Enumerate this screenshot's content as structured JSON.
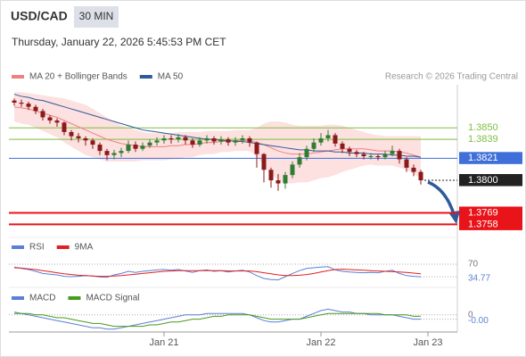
{
  "header": {
    "symbol": "USD/CAD",
    "interval": "30 MIN",
    "datetime": "Thursday, January 22, 2026 5:45:53 PM CET",
    "credit": "Research © 2026 Trading Central"
  },
  "chart_data": [
    {
      "type": "candlestick",
      "categories": [
        null,
        null,
        null,
        null,
        null,
        null,
        null,
        null,
        null,
        null,
        null,
        null,
        null,
        null,
        null,
        null,
        null,
        null,
        null,
        null,
        null,
        "Jan 21",
        null,
        null,
        null,
        null,
        null,
        null,
        null,
        null,
        null,
        null,
        null,
        null,
        null,
        null,
        null,
        null,
        null,
        null,
        null,
        null,
        null,
        "Jan 22",
        null,
        null,
        null,
        null,
        null,
        null,
        null,
        null,
        null,
        null,
        null,
        null,
        null,
        null,
        "Jan 23"
      ],
      "candles": [
        [
          1.3876,
          1.3878,
          1.3871,
          1.3874
        ],
        [
          1.3874,
          1.3877,
          1.387,
          1.3873
        ],
        [
          1.3873,
          1.3875,
          1.3867,
          1.387
        ],
        [
          1.387,
          1.3872,
          1.3863,
          1.3866
        ],
        [
          1.3866,
          1.3868,
          1.3857,
          1.386
        ],
        [
          1.386,
          1.3862,
          1.3854,
          1.3857
        ],
        [
          1.3857,
          1.3859,
          1.3851,
          1.3855
        ],
        [
          1.3855,
          1.3856,
          1.3843,
          1.3846
        ],
        [
          1.3846,
          1.3848,
          1.3838,
          1.3842
        ],
        [
          1.3842,
          1.3845,
          1.3836,
          1.384
        ],
        [
          1.384,
          1.3842,
          1.3833,
          1.3838
        ],
        [
          1.3838,
          1.384,
          1.383,
          1.3834
        ],
        [
          1.3834,
          1.3836,
          1.3824,
          1.3828
        ],
        [
          1.3828,
          1.383,
          1.3819,
          1.3824
        ],
        [
          1.3824,
          1.3829,
          1.382,
          1.3826
        ],
        [
          1.3826,
          1.3831,
          1.3822,
          1.3828
        ],
        [
          1.3828,
          1.3838,
          1.3826,
          1.3834
        ],
        [
          1.3834,
          1.3837,
          1.3827,
          1.383
        ],
        [
          1.383,
          1.3836,
          1.3828,
          1.3833
        ],
        [
          1.3833,
          1.3839,
          1.3831,
          1.3836
        ],
        [
          1.3836,
          1.3841,
          1.3833,
          1.3838
        ],
        [
          1.3838,
          1.3843,
          1.3835,
          1.384
        ],
        [
          1.384,
          1.3843,
          1.3835,
          1.3839
        ],
        [
          1.3839,
          1.3844,
          1.3836,
          1.3841
        ],
        [
          1.3841,
          1.3843,
          1.3834,
          1.3838
        ],
        [
          1.3838,
          1.384,
          1.3831,
          1.3834
        ],
        [
          1.3834,
          1.3841,
          1.3832,
          1.3838
        ],
        [
          1.3838,
          1.3843,
          1.3835,
          1.384
        ],
        [
          1.384,
          1.3842,
          1.3834,
          1.3837
        ],
        [
          1.3837,
          1.3842,
          1.3834,
          1.3839
        ],
        [
          1.3839,
          1.3841,
          1.3833,
          1.3836
        ],
        [
          1.3836,
          1.3841,
          1.3833,
          1.3838
        ],
        [
          1.3838,
          1.3843,
          1.3835,
          1.384
        ],
        [
          1.384,
          1.3842,
          1.3832,
          1.3836
        ],
        [
          1.3836,
          1.3837,
          1.3812,
          1.3825
        ],
        [
          1.3825,
          1.3826,
          1.3798,
          1.381
        ],
        [
          1.381,
          1.3812,
          1.3793,
          1.38
        ],
        [
          1.38,
          1.3806,
          1.379,
          1.3797
        ],
        [
          1.3797,
          1.3808,
          1.3792,
          1.3805
        ],
        [
          1.3805,
          1.3818,
          1.3802,
          1.3815
        ],
        [
          1.3815,
          1.3826,
          1.3812,
          1.3822
        ],
        [
          1.3822,
          1.3833,
          1.3819,
          1.383
        ],
        [
          1.383,
          1.384,
          1.3827,
          1.3836
        ],
        [
          1.3836,
          1.3845,
          1.3833,
          1.384
        ],
        [
          1.384,
          1.3848,
          1.3837,
          1.3843
        ],
        [
          1.3843,
          1.3845,
          1.3832,
          1.3835
        ],
        [
          1.3835,
          1.3837,
          1.3826,
          1.383
        ],
        [
          1.383,
          1.3832,
          1.3823,
          1.3827
        ],
        [
          1.3827,
          1.3829,
          1.3822,
          1.3825
        ],
        [
          1.3825,
          1.3827,
          1.382,
          1.3823
        ],
        [
          1.3823,
          1.3826,
          1.382,
          1.3823
        ],
        [
          1.3823,
          1.3825,
          1.3819,
          1.3822
        ],
        [
          1.3822,
          1.3828,
          1.382,
          1.3825
        ],
        [
          1.3825,
          1.3833,
          1.3823,
          1.3828
        ],
        [
          1.3828,
          1.383,
          1.3816,
          1.382
        ],
        [
          1.382,
          1.3822,
          1.3808,
          1.3812
        ],
        [
          1.3812,
          1.3815,
          1.3804,
          1.3808
        ],
        [
          1.3808,
          1.381,
          1.3796,
          1.38
        ],
        null
      ],
      "up_color": "#2f7d32",
      "down_color": "#8b1a1a",
      "series": [
        {
          "name": "MA 20 + Bollinger Bands",
          "color": "#f08080",
          "band_color": "#fde0e0",
          "values": [
            1.387,
            1.3869,
            1.3868,
            1.3866,
            1.3864,
            1.3862,
            1.386,
            1.3857,
            1.3854,
            1.3851,
            1.3848,
            1.3845,
            1.3842,
            1.3839,
            1.3837,
            1.3835,
            1.3834,
            1.3833,
            1.3832,
            1.3832,
            1.3832,
            1.3832,
            1.3833,
            1.3833,
            1.3834,
            1.3834,
            1.3835,
            1.3836,
            1.3836,
            1.3837,
            1.3837,
            1.3838,
            1.3838,
            1.3838,
            1.3836,
            1.3834,
            1.3831,
            1.3828,
            1.3826,
            1.3825,
            1.3825,
            1.3825,
            1.3826,
            1.3827,
            1.3828,
            1.3829,
            1.383,
            1.383,
            1.383,
            1.383,
            1.3829,
            1.3828,
            1.3828,
            1.3828,
            1.3827,
            1.3826,
            1.3824,
            1.3822,
            null
          ],
          "upper": [
            1.3884,
            1.3884,
            1.3883,
            1.3882,
            1.3881,
            1.388,
            1.3879,
            1.3878,
            1.3876,
            1.3874,
            1.3872,
            1.3868,
            1.3864,
            1.386,
            1.3856,
            1.3852,
            1.385,
            1.3848,
            1.3846,
            1.3845,
            1.3845,
            1.3845,
            1.3845,
            1.3846,
            1.3846,
            1.3846,
            1.3846,
            1.3847,
            1.3847,
            1.3847,
            1.3847,
            1.3848,
            1.3848,
            1.3848,
            1.385,
            1.3854,
            1.3856,
            1.3856,
            1.3855,
            1.3853,
            1.3852,
            1.3852,
            1.3852,
            1.3852,
            1.3853,
            1.3853,
            1.3852,
            1.385,
            1.3848,
            1.3846,
            1.3844,
            1.3843,
            1.3842,
            1.3842,
            1.3842,
            1.3842,
            1.3842,
            1.3842,
            null
          ],
          "lower": [
            1.3856,
            1.3854,
            1.3853,
            1.385,
            1.3847,
            1.3844,
            1.3841,
            1.3836,
            1.3832,
            1.3828,
            1.3824,
            1.3822,
            1.382,
            1.3818,
            1.3818,
            1.3818,
            1.3818,
            1.3818,
            1.3819,
            1.3819,
            1.3819,
            1.3819,
            1.382,
            1.382,
            1.3822,
            1.3822,
            1.3824,
            1.3825,
            1.3825,
            1.3827,
            1.3827,
            1.3828,
            1.3828,
            1.3828,
            1.3822,
            1.3814,
            1.3806,
            1.38,
            1.3797,
            1.3797,
            1.3798,
            1.3798,
            1.38,
            1.3802,
            1.3803,
            1.3805,
            1.3808,
            1.381,
            1.3812,
            1.3814,
            1.3815,
            1.3814,
            1.3814,
            1.3814,
            1.3812,
            1.381,
            1.3806,
            1.3802,
            null
          ]
        },
        {
          "name": "MA 50",
          "color": "#2d5a9a",
          "values": [
            1.3882,
            1.388,
            1.3879,
            1.3877,
            1.3876,
            1.3874,
            1.3872,
            1.387,
            1.3868,
            1.3866,
            1.3864,
            1.3862,
            1.386,
            1.3858,
            1.3856,
            1.3854,
            1.3852,
            1.385,
            1.3848,
            1.3847,
            1.3846,
            1.3845,
            1.3844,
            1.3843,
            1.3842,
            1.3841,
            1.384,
            1.3839,
            1.3839,
            1.3838,
            1.3838,
            1.3837,
            1.3837,
            1.3836,
            1.3835,
            1.3834,
            1.3833,
            1.3832,
            1.3831,
            1.383,
            1.3829,
            1.3829,
            1.3828,
            1.3828,
            1.3828,
            1.3827,
            1.3827,
            1.3826,
            1.3826,
            1.3826,
            1.3825,
            1.3825,
            1.3825,
            1.3824,
            1.3824,
            1.3823,
            1.3823,
            1.3822,
            null
          ]
        }
      ],
      "levels": [
        {
          "value": 1.385,
          "label": "1.3850",
          "color": "#7cbf3f",
          "style": "plain"
        },
        {
          "value": 1.3839,
          "color": "#7cbf3f",
          "style": "plain"
        },
        {
          "value": 1.3821,
          "color": "#3f6fd8",
          "style": "box"
        },
        {
          "value": 1.38,
          "label": "1.3800",
          "color": "#222222",
          "style": "dotted"
        },
        {
          "value": 1.3769,
          "color": "#e8141a",
          "style": "thick"
        },
        {
          "value": 1.3758,
          "color": "#e8141a",
          "style": "thick"
        }
      ],
      "ylim": [
        1.3749,
        1.3891
      ]
    },
    {
      "type": "line",
      "series": [
        {
          "name": "RSI",
          "color": "#5b7fd6",
          "values": [
            62,
            58,
            55,
            50,
            44,
            42,
            40,
            36,
            35,
            36,
            38,
            37,
            34,
            33,
            40,
            44,
            50,
            47,
            50,
            52,
            54,
            55,
            53,
            55,
            51,
            47,
            52,
            54,
            50,
            52,
            48,
            51,
            53,
            48,
            38,
            30,
            27,
            26,
            35,
            44,
            52,
            58,
            60,
            62,
            63,
            54,
            50,
            48,
            47,
            46,
            47,
            46,
            50,
            53,
            44,
            38,
            36,
            34.77,
            null
          ]
        },
        {
          "name": "9MA",
          "color": "#e02020",
          "values": [
            60,
            59,
            57,
            55,
            52,
            49,
            46,
            43,
            41,
            39,
            38,
            37,
            36,
            36,
            37,
            38,
            40,
            42,
            44,
            46,
            48,
            50,
            51,
            52,
            52,
            52,
            52,
            52,
            52,
            52,
            51,
            51,
            51,
            51,
            49,
            46,
            43,
            40,
            38,
            38,
            39,
            41,
            44,
            48,
            52,
            55,
            56,
            55,
            54,
            53,
            52,
            51,
            50,
            49,
            48,
            47,
            45,
            43,
            null
          ]
        }
      ],
      "ylim": [
        20,
        100
      ],
      "yticks": [
        70
      ],
      "grid": true
    },
    {
      "type": "line",
      "series": [
        {
          "name": "MACD",
          "color": "#5b7fd6",
          "values": [
            0.0002,
            0.0001,
            0,
            -0.0001,
            -0.0002,
            -0.0003,
            -0.0004,
            -0.0005,
            -0.0006,
            -0.0007,
            -0.0008,
            -0.0009,
            -0.0009,
            -0.001,
            -0.001,
            -0.0009,
            -0.0008,
            -0.0007,
            -0.0006,
            -0.0005,
            -0.0004,
            -0.0003,
            -0.0002,
            -0.0001,
            0,
            0,
            0,
            0.0001,
            0.0001,
            0.0001,
            0.0001,
            0.0001,
            0.0001,
            0,
            -0.0002,
            -0.0004,
            -0.0005,
            -0.0005,
            -0.0004,
            -0.0003,
            -0.0003,
            -0.0001,
            0.0001,
            0.0003,
            0.0004,
            0.0003,
            0.0002,
            0.0002,
            0.0001,
            0.0001,
            0,
            0,
            0,
            0,
            -0.0001,
            -0.0002,
            -0.0003,
            -0.0003,
            null
          ],
          "value_labels": [
            null,
            null,
            null,
            null,
            null,
            null,
            null,
            null,
            null,
            null,
            null,
            null,
            null,
            null,
            null,
            null,
            null,
            null,
            null,
            null,
            null,
            null,
            null,
            null,
            null,
            null,
            null,
            null,
            null,
            null,
            null,
            null,
            null,
            null,
            null,
            null,
            null,
            null,
            null,
            null,
            null,
            null,
            null,
            null,
            null,
            null,
            null,
            null,
            null,
            null,
            null,
            null,
            null,
            null,
            null,
            null,
            null,
            "-0.00",
            null
          ]
        },
        {
          "name": "MACD Signal",
          "color": "#4a9a1e",
          "values": [
            0.0001,
            0.0001,
            0.0001,
            0,
            0,
            -0.0001,
            -0.0002,
            -0.0002,
            -0.0003,
            -0.0004,
            -0.0005,
            -0.0006,
            -0.0006,
            -0.0007,
            -0.0008,
            -0.0008,
            -0.0008,
            -0.0008,
            -0.0008,
            -0.0007,
            -0.0007,
            -0.0006,
            -0.0005,
            -0.0005,
            -0.0004,
            -0.0003,
            -0.0003,
            -0.0002,
            -0.0001,
            -0.0001,
            0,
            0,
            0,
            0,
            -0.0001,
            -0.0002,
            -0.0003,
            -0.0003,
            -0.0003,
            -0.0003,
            -0.0003,
            -0.0002,
            -0.0001,
            0,
            0.0001,
            0.0001,
            0.0001,
            0.0001,
            0.0001,
            0.0001,
            0.0001,
            0.0001,
            0,
            0,
            0,
            0,
            -0.0001,
            -0.0001,
            null
          ]
        }
      ],
      "ylim": [
        -0.0012,
        0.0008
      ],
      "yticks": [
        0
      ],
      "grid": true
    }
  ]
}
